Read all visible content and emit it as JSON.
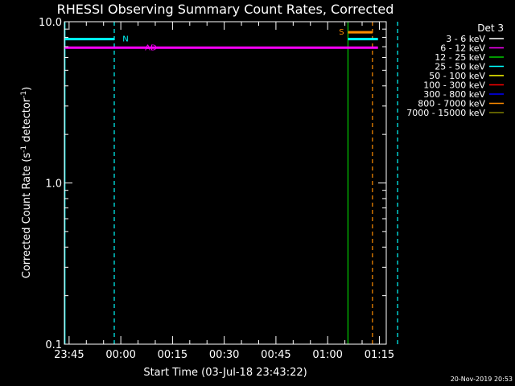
{
  "chart_data": {
    "type": "line",
    "title": "RHESSI Observing Summary Count Rates, Corrected",
    "xlabel": "Start Time (03-Jul-18 23:43:22)",
    "ylabel_main": "Corrected Count Rate (s",
    "ylabel_sup1": "-1",
    "ylabel_mid": " detector",
    "ylabel_sup2": "-1",
    "ylabel_end": ")",
    "yscale": "log",
    "ylim": [
      0.1,
      10.0
    ],
    "yticks": [
      {
        "value": 0.1,
        "label": "0.1"
      },
      {
        "value": 1.0,
        "label": "1.0"
      },
      {
        "value": 10.0,
        "label": "10.0"
      }
    ],
    "xlim_minutes": [
      -16.37,
      77.0
    ],
    "xticks": [
      {
        "minutes": -15,
        "label": "23:45"
      },
      {
        "minutes": 0,
        "label": "00:00"
      },
      {
        "minutes": 15,
        "label": "00:15"
      },
      {
        "minutes": 30,
        "label": "00:30"
      },
      {
        "minutes": 45,
        "label": "00:45"
      },
      {
        "minutes": 60,
        "label": "01:00"
      },
      {
        "minutes": 75,
        "label": "01:15"
      }
    ],
    "legend_title": "Det 3",
    "legend_position": "right",
    "legend": [
      {
        "label": "3 - 6 keV",
        "color": "#ffffff"
      },
      {
        "label": "6 - 12 keV",
        "color": "#ff00ff"
      },
      {
        "label": "12 - 25 keV",
        "color": "#00cc00"
      },
      {
        "label": "25 - 50 keV",
        "color": "#00ffff"
      },
      {
        "label": "50 - 100 keV",
        "color": "#ffff00"
      },
      {
        "label": "100 - 300 keV",
        "color": "#ff0000"
      },
      {
        "label": "300 - 800 keV",
        "color": "#0000ff"
      },
      {
        "label": "800 - 7000 keV",
        "color": "#ff8c00"
      },
      {
        "label": "7000 - 15000 keV",
        "color": "#808000"
      }
    ],
    "series": [
      {
        "label": "25 - 50 keV",
        "color": "#00ffff",
        "segments": [
          {
            "x": [
              -16.37,
              -1.9
            ],
            "y": [
              7.8,
              7.8
            ]
          },
          {
            "x": [
              65.9,
              74.6
            ],
            "y": [
              7.8,
              7.8
            ]
          }
        ]
      },
      {
        "label": "6 - 12 keV",
        "color": "#ff00ff",
        "segments": [
          {
            "x": [
              -16.37,
              74.6
            ],
            "y": [
              6.9,
              6.9
            ]
          }
        ]
      },
      {
        "label": "800 - 7000 keV",
        "color": "#ff8c00",
        "segments": [
          {
            "x": [
              65.9,
              73.0
            ],
            "y": [
              8.6,
              8.6
            ]
          }
        ]
      }
    ],
    "vlines": [
      {
        "minutes": -16.2,
        "color": "#00ffff",
        "style": "solid"
      },
      {
        "minutes": -1.9,
        "color": "#00ffff",
        "style": "dashed"
      },
      {
        "minutes": 65.9,
        "color": "#00cc00",
        "style": "solid"
      },
      {
        "minutes": 73.0,
        "color": "#ff8c00",
        "style": "dashed"
      },
      {
        "minutes": 80.3,
        "color": "#00ffff",
        "style": "dashed"
      }
    ],
    "annotations": [
      {
        "text": "N",
        "minutes": 0.5,
        "value": 7.8,
        "color": "#00ffff"
      },
      {
        "text": "AD",
        "minutes": 7.0,
        "value": 6.9,
        "color": "#ff00ff"
      },
      {
        "text": "S",
        "minutes": 63.3,
        "value": 8.6,
        "color": "#ff8c00"
      }
    ],
    "timestamp": "20-Nov-2019 20:53"
  }
}
